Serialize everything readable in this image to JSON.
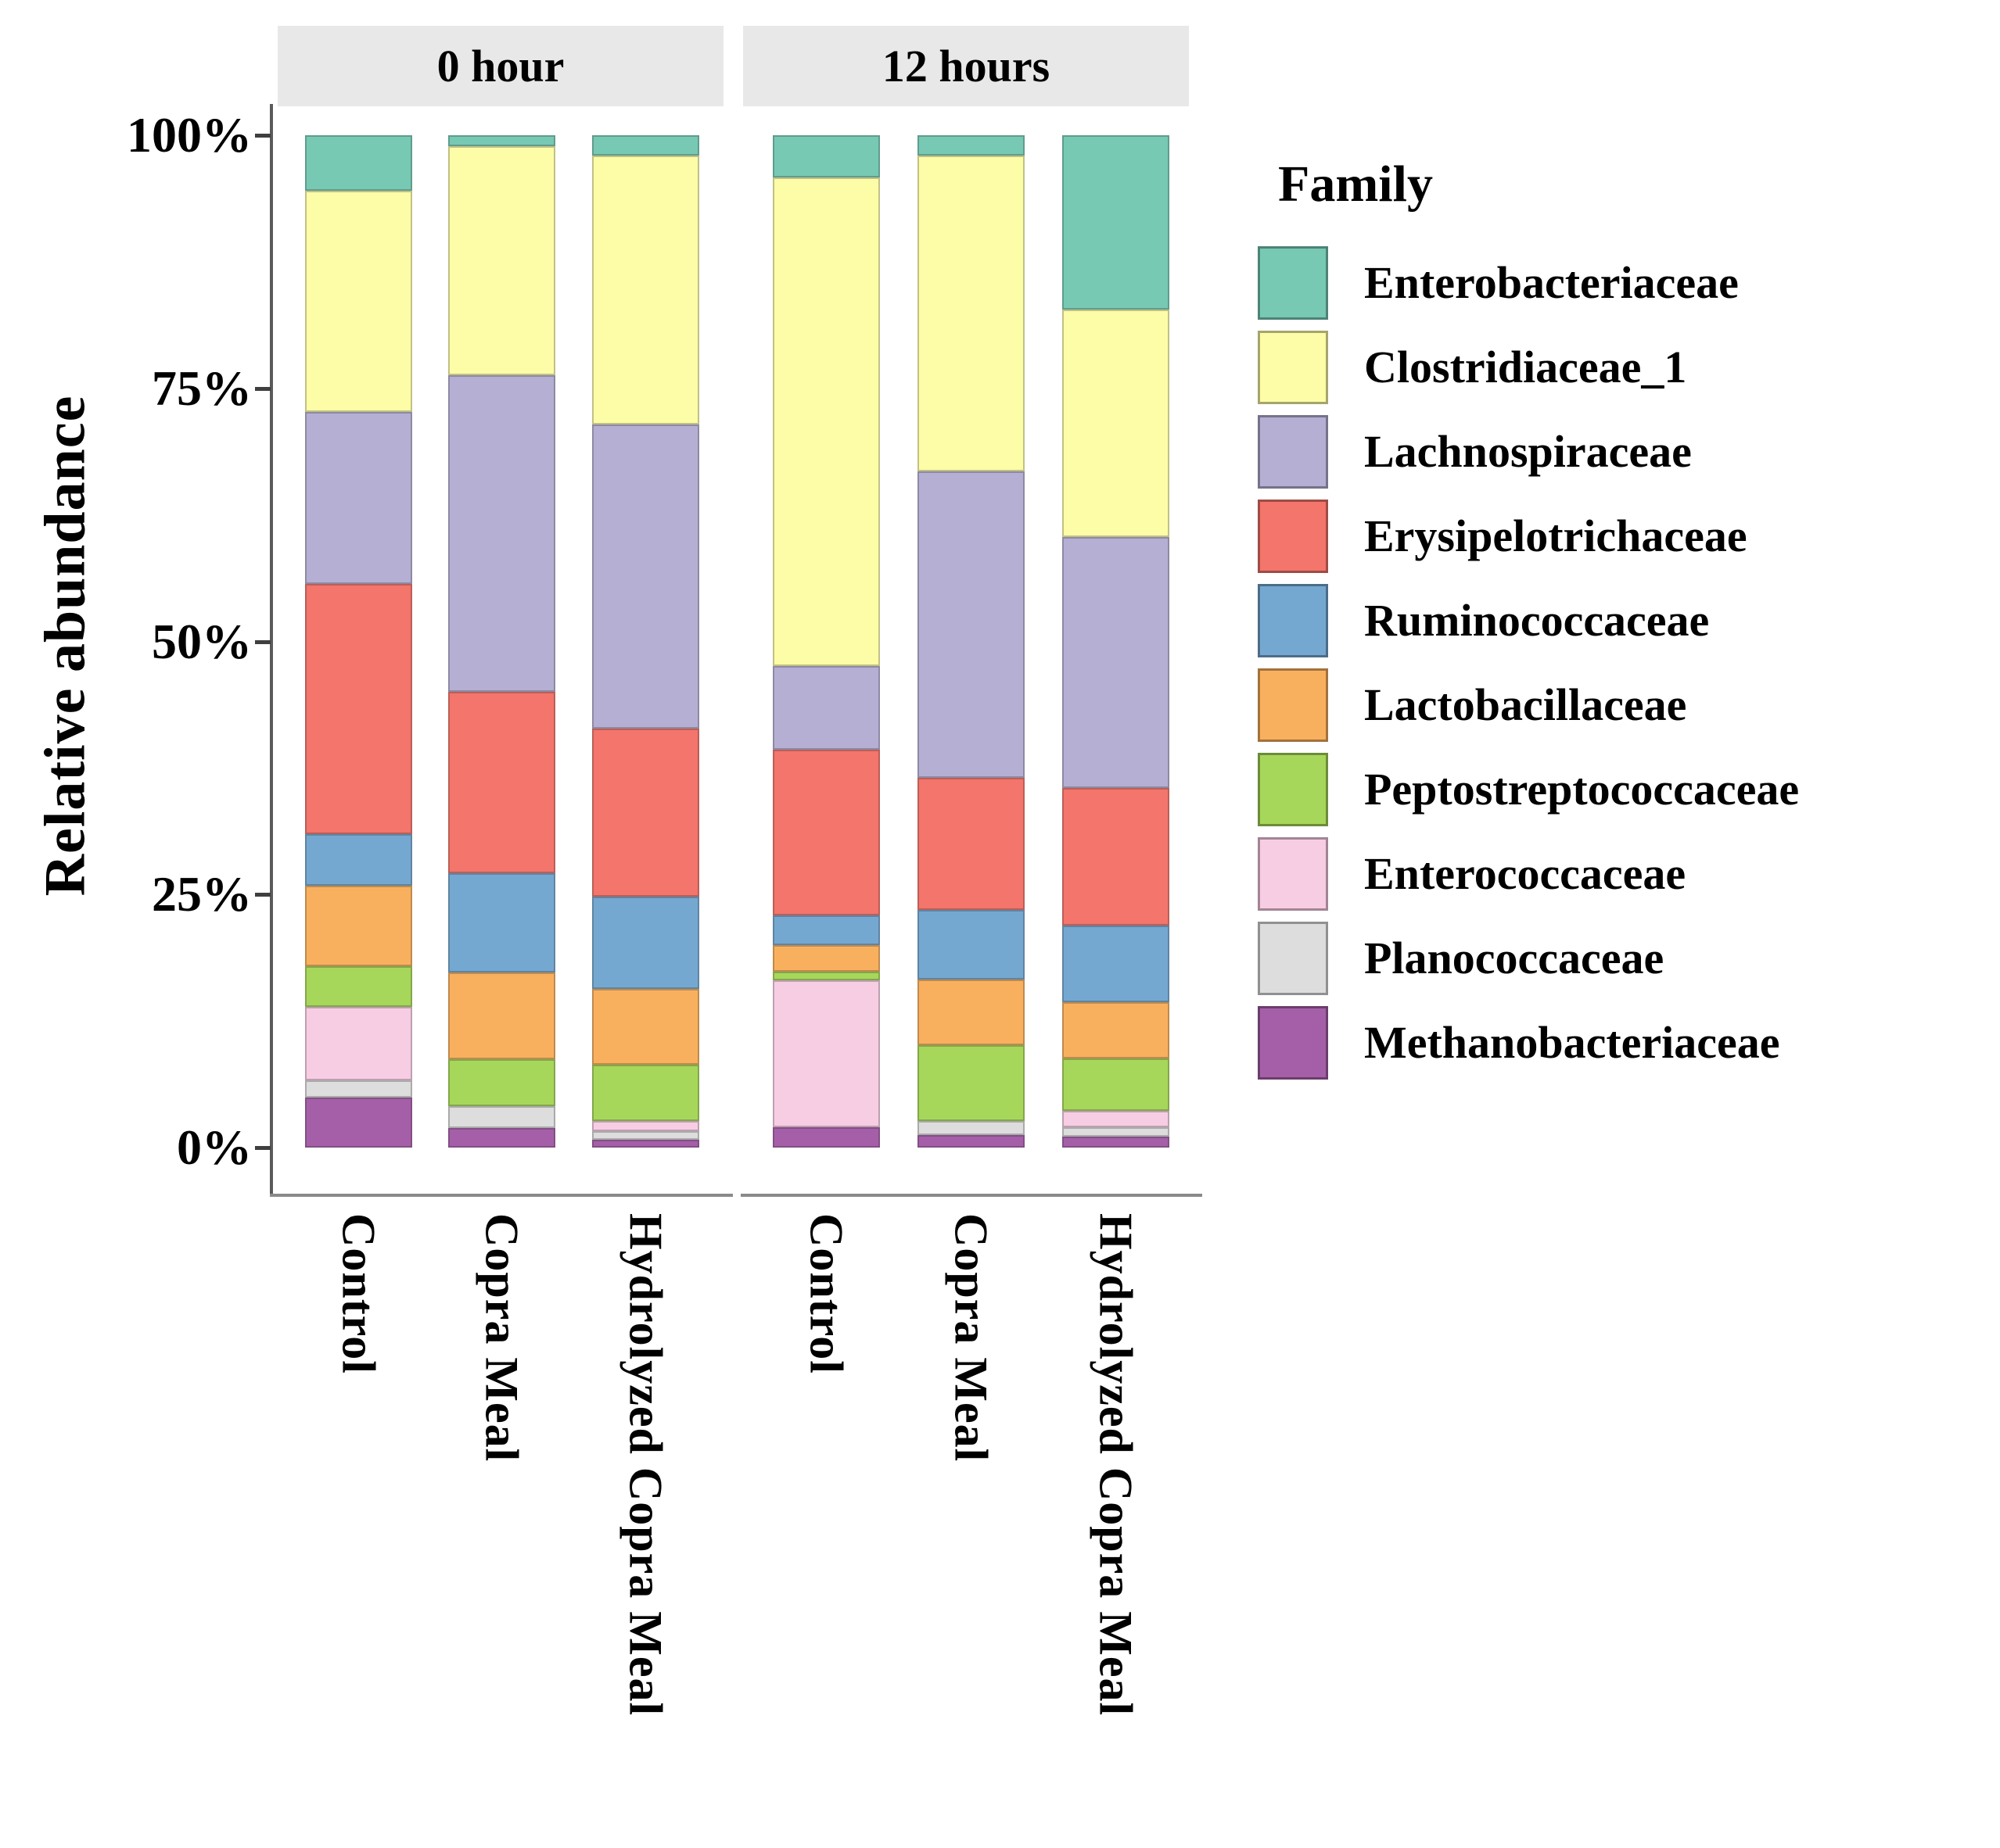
{
  "chart_data": {
    "type": "bar",
    "stacked": true,
    "orientation": "vertical",
    "ylabel": "Relative abundance",
    "ylim": [
      0,
      100
    ],
    "units": "percent",
    "grid": false,
    "legend_position": "right",
    "legend_title": "Family",
    "y_ticks": [
      {
        "label": "100%",
        "value": 100
      },
      {
        "label": "75%",
        "value": 75
      },
      {
        "label": "50%",
        "value": 50
      },
      {
        "label": "25%",
        "value": 25
      },
      {
        "label": "0%",
        "value": 0
      }
    ],
    "facets": [
      {
        "label": "0 hour",
        "categories": [
          "Control",
          "Copra Meal",
          "Hydrolyzed Copra Meal"
        ]
      },
      {
        "label": "12 hours",
        "categories": [
          "Control",
          "Copra Meal",
          "Hydrolyzed Copra Meal"
        ]
      }
    ],
    "bar_order_note": "values arrays are [0h Control, 0h Copra Meal, 0h Hydrolyzed Copra Meal, 12h Control, 12h Copra Meal, 12h Hydrolyzed Copra Meal], in percent",
    "series": [
      {
        "name": "Enterobacteriaceae",
        "color": "#77C9B4",
        "values": [
          5.5,
          1.1,
          2.0,
          4.2,
          2.0,
          17.2
        ]
      },
      {
        "name": "Clostridiaceae_1",
        "color": "#FDFDA8",
        "values": [
          21.8,
          22.6,
          26.6,
          48.2,
          31.2,
          22.5
        ]
      },
      {
        "name": "Lachnospiraceae",
        "color": "#B5AFD3",
        "values": [
          17.0,
          31.3,
          30.0,
          8.3,
          30.3,
          24.8
        ]
      },
      {
        "name": "Erysipelotrichaceae",
        "color": "#F3756B",
        "values": [
          24.7,
          17.9,
          16.6,
          16.4,
          13.0,
          13.6
        ]
      },
      {
        "name": "Ruminococcaceae",
        "color": "#75A8D1",
        "values": [
          5.1,
          9.8,
          9.1,
          2.9,
          6.9,
          7.5
        ]
      },
      {
        "name": "Lactobacillaceae",
        "color": "#F9B05E",
        "values": [
          8.0,
          8.6,
          7.5,
          2.6,
          6.5,
          5.6
        ]
      },
      {
        "name": "Peptostreptococcaceae",
        "color": "#A7D75A",
        "values": [
          4.0,
          4.6,
          5.6,
          0.9,
          7.5,
          5.2
        ]
      },
      {
        "name": "Enterococcaceae",
        "color": "#F7CDE4",
        "values": [
          7.3,
          0,
          1.0,
          14.5,
          0,
          1.6
        ]
      },
      {
        "name": "Planococcaceae",
        "color": "#DDDDDD",
        "values": [
          1.7,
          2.2,
          0.8,
          0,
          1.4,
          0.9
        ]
      },
      {
        "name": "Methanobacteriaceae",
        "color": "#A55FA8",
        "values": [
          4.9,
          1.9,
          0.8,
          2.0,
          1.2,
          1.1
        ]
      }
    ]
  }
}
